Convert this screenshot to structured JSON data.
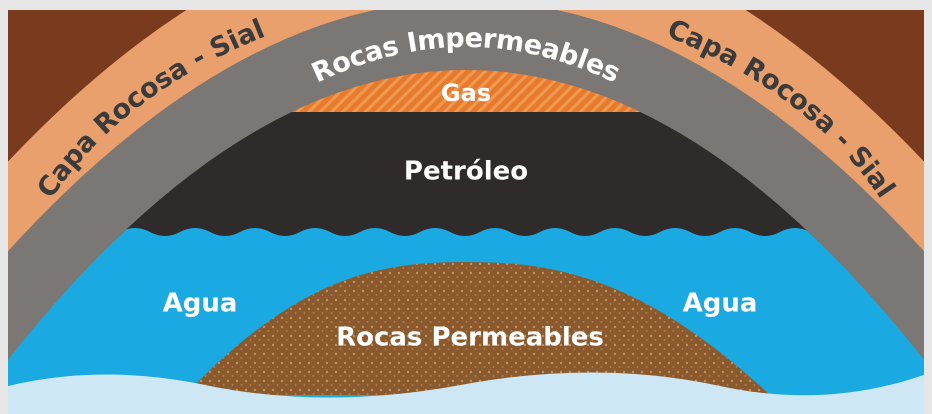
{
  "labels": {
    "sial_left": "Capa Rocosa - Sial",
    "sial_right": "Capa Rocosa - Sial",
    "impermeable": "Rocas Impermeables",
    "gas": "Gas",
    "oil": "Petróleo",
    "water_left": "Agua",
    "water_right": "Agua",
    "permeable": "Rocas Permeables"
  }
}
